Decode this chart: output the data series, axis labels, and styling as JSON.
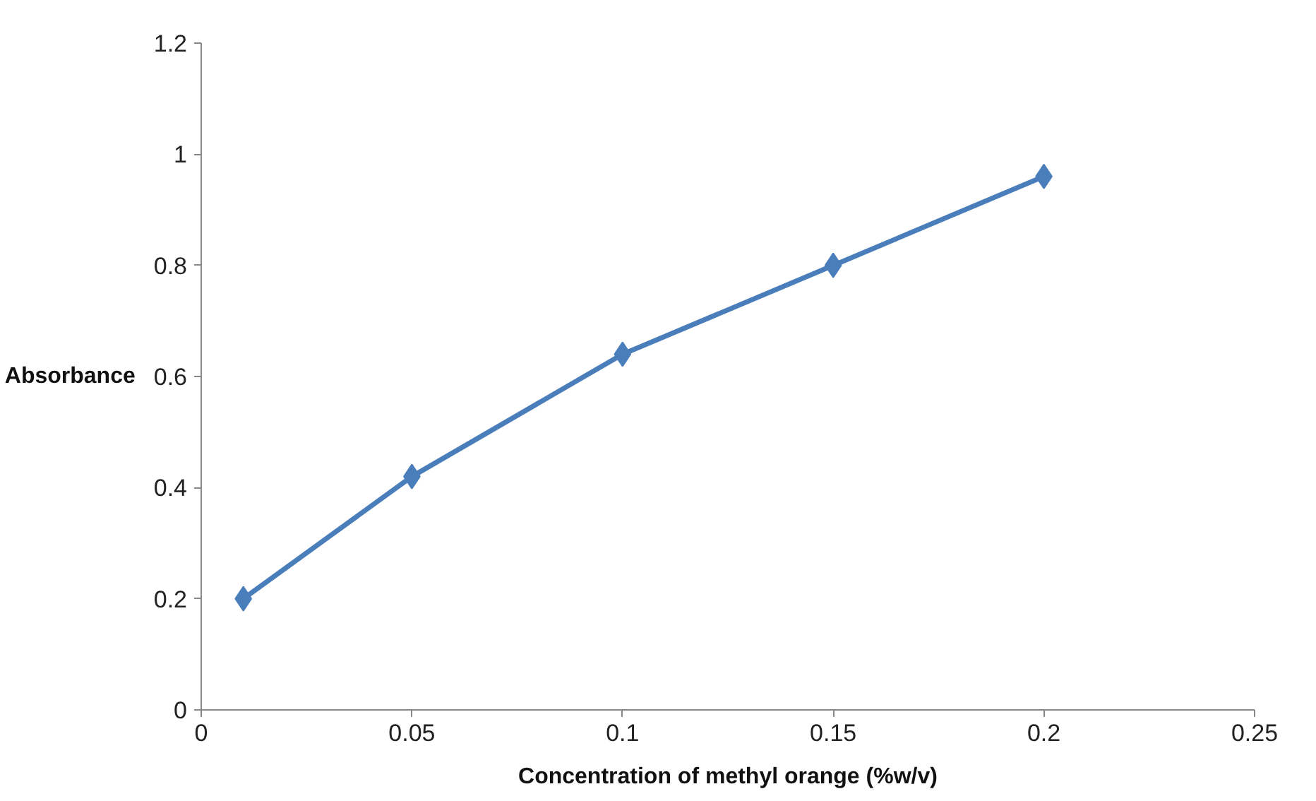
{
  "chart_data": {
    "type": "line",
    "xlabel": "Concentration of methyl orange (%w/v)",
    "ylabel": "Absorbance",
    "x": [
      0.01,
      0.05,
      0.1,
      0.15,
      0.2
    ],
    "series": [
      {
        "color": "#4a7ebb",
        "values": [
          0.2,
          0.42,
          0.64,
          0.8,
          0.96
        ]
      }
    ],
    "xlim": [
      0,
      0.25
    ],
    "xticks": [
      0,
      0.05,
      0.1,
      0.15,
      0.2,
      0.25
    ],
    "ylim": [
      0,
      1.2
    ],
    "yticks": [
      0,
      0.2,
      0.4,
      0.6,
      0.8,
      1,
      1.2
    ],
    "marker": "diamond",
    "line_style": "solid",
    "grid": false
  }
}
